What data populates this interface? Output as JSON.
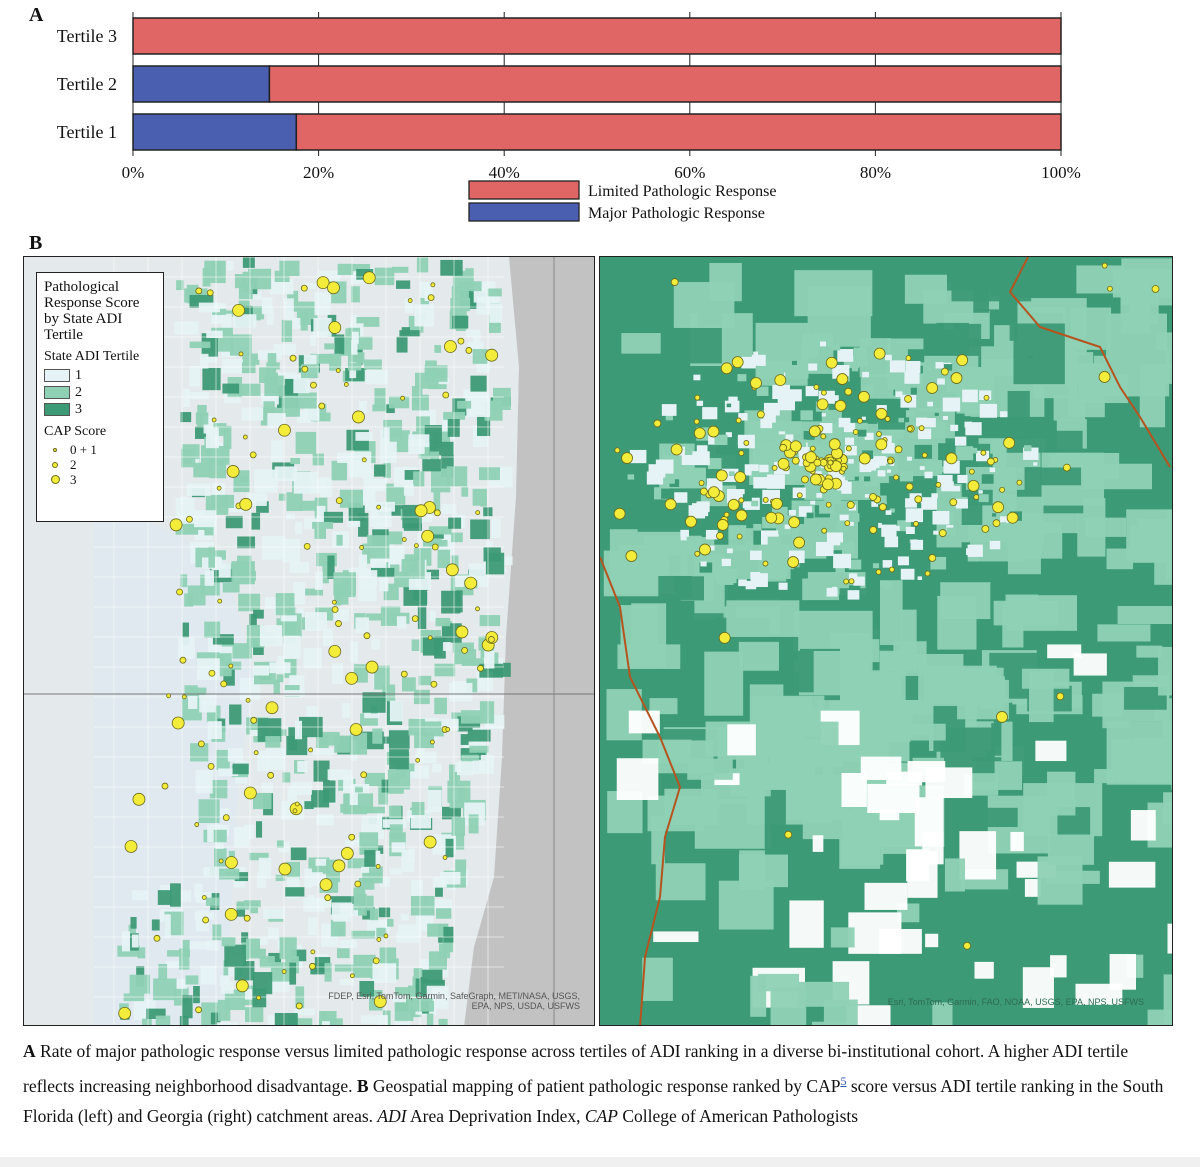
{
  "panel_a_label": "A",
  "panel_b_label": "B",
  "chart_data": {
    "type": "bar",
    "orientation": "horizontal",
    "stacked": true,
    "categories": [
      "Tertile 3",
      "Tertile 2",
      "Tertile 1"
    ],
    "series": [
      {
        "name": "Major Pathologic Response",
        "color": "#4a5fb0",
        "values": [
          0,
          14.7,
          17.6
        ]
      },
      {
        "name": "Limited Pathologic Response",
        "color": "#e06666",
        "values": [
          100,
          85.3,
          82.4
        ]
      }
    ],
    "x_ticks": [
      "0%",
      "20%",
      "40%",
      "60%",
      "80%",
      "100%"
    ],
    "xlim": [
      0,
      100
    ],
    "grid": true,
    "legend": [
      "Limited Pathologic Response",
      "Major Pathologic Response"
    ],
    "legend_placement": "bottom-center"
  },
  "legend": {
    "title": "Pathological Response Score by State ADI Tertile",
    "tertile_heading": "State ADI Tertile",
    "tertiles": [
      {
        "label": "1",
        "color": "#e6f3f6"
      },
      {
        "label": "2",
        "color": "#8fd1b5"
      },
      {
        "label": "3",
        "color": "#3d9a76"
      }
    ],
    "cap_heading": "CAP Score",
    "cap_items": [
      {
        "label": "0 + 1"
      },
      {
        "label": "2"
      },
      {
        "label": "3"
      }
    ]
  },
  "map_left_credit": "FDEP, Esri, TomTom, Garmin, SafeGraph, METI/NASA, USGS, EPA, NPS, USDA, USFWS",
  "map_right_credit": "Esri, TomTom, Garmin, FAO, NOAA, USGS, EPA, NPS, USFWS",
  "caption": {
    "a_letter": "A",
    "a_text": " Rate of major pathologic response versus limited pathologic response across tertiles of ADI ranking in a diverse bi-institutional cohort. A higher ADI tertile reflects increasing neighborhood disadvantage. ",
    "b_letter": "B",
    "b_text_1": " Geospatial mapping of patient pathologic response ranked by CAP",
    "ref": "5",
    "b_text_2": " score versus ADI tertile ranking in the South Florida (left) and Georgia (right) catchment areas. ",
    "adi_abbr": "ADI",
    "adi_def": " Area Deprivation Index, ",
    "cap_abbr": "CAP",
    "cap_def": " College of American Pathologists"
  }
}
